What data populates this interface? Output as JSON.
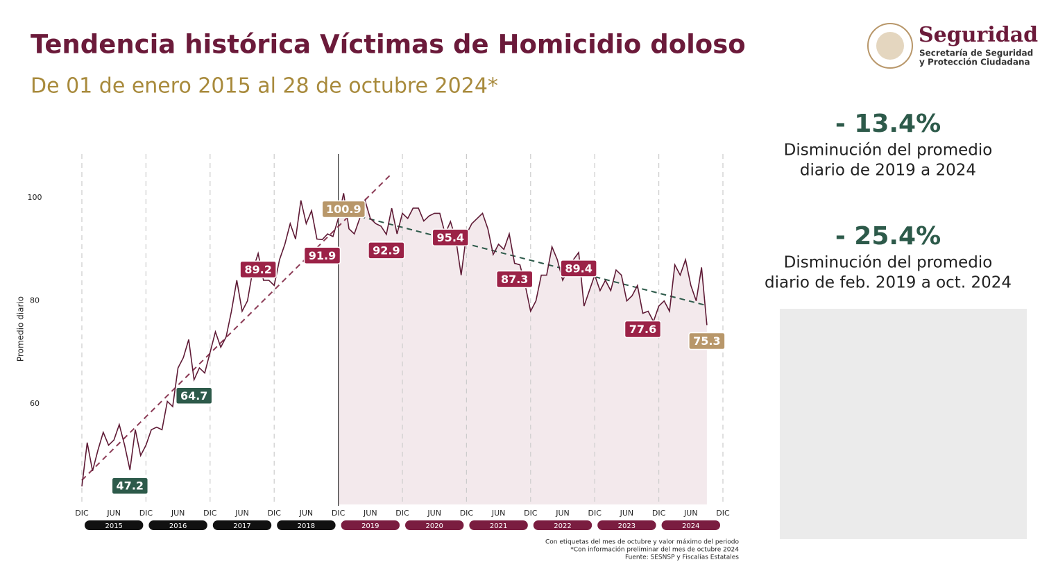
{
  "header": {
    "title": "Tendencia histórica Víctimas de Homicidio doloso",
    "subtitle": "De 01 de enero 2015 al 28 de octubre 2024*"
  },
  "logo": {
    "name": "Seguridad",
    "line1": "Secretaría de Seguridad",
    "line2": "y Protección Ciudadana"
  },
  "stats": [
    {
      "value": "- 13.4%",
      "line1": "Disminución del promedio",
      "line2": "diario de 2019 a 2024"
    },
    {
      "value": "- 25.4%",
      "line1": "Disminución del promedio",
      "line2": "diario de feb. 2019 a oct. 2024"
    }
  ],
  "notes": [
    "Con etiquetas del mes de octubre y valor máximo del periodo",
    "*Con información preliminar del mes de octubre 2024",
    "Fuente: SESNSP y Fiscalías Estatales"
  ],
  "chart_data": {
    "type": "line",
    "ylabel": "Promedio diario",
    "color": "#5e1a35",
    "values": [
      44,
      52.5,
      47,
      51,
      54.5,
      52,
      53,
      56,
      52,
      47.2,
      55,
      50,
      52,
      55,
      55.5,
      55,
      60.5,
      59.5,
      67,
      69,
      72.5,
      64.7,
      67,
      66,
      70,
      74,
      71,
      73,
      78,
      84,
      78,
      80,
      86,
      89.2,
      84,
      84,
      83,
      88,
      91,
      95,
      92,
      99.5,
      95,
      97.5,
      92,
      91.9,
      93,
      92.5,
      96,
      100.9,
      94,
      93,
      96,
      99.5,
      96,
      95,
      94.5,
      92.9,
      98,
      93,
      97,
      96,
      98,
      98,
      95.5,
      96.5,
      97,
      97,
      93,
      95.4,
      92,
      85,
      93,
      95,
      96,
      97,
      94,
      89,
      91,
      90,
      93,
      87.3,
      87,
      83,
      78,
      80,
      85,
      85,
      90.5,
      88,
      84,
      86,
      88,
      89.4,
      79,
      82,
      85,
      82,
      84,
      82,
      86,
      85,
      80,
      81,
      83,
      77.6,
      78,
      76,
      79,
      80,
      78,
      87,
      85,
      88,
      83,
      80,
      86.5,
      75.3
    ],
    "value_labels": [
      null,
      null,
      null,
      null,
      null,
      null,
      null,
      null,
      null,
      "47.2",
      null,
      null,
      null,
      null,
      null,
      null,
      null,
      null,
      null,
      null,
      null,
      "64.7",
      null,
      null,
      null,
      null,
      null,
      null,
      null,
      null,
      null,
      null,
      null,
      "89.2",
      null,
      null,
      null,
      null,
      null,
      null,
      null,
      null,
      null,
      null,
      null,
      "91.9",
      null,
      null,
      null,
      "100.9",
      null,
      null,
      null,
      null,
      null,
      null,
      null,
      "92.9",
      null,
      null,
      null,
      null,
      null,
      null,
      null,
      null,
      null,
      null,
      null,
      "95.4",
      null,
      null,
      null,
      null,
      null,
      null,
      null,
      null,
      null,
      null,
      null,
      "87.3",
      null,
      null,
      null,
      null,
      null,
      null,
      null,
      null,
      null,
      null,
      null,
      "89.4",
      null,
      null,
      null,
      null,
      null,
      null,
      null,
      null,
      null,
      null,
      null,
      "77.6",
      null,
      null,
      null,
      null,
      null,
      null,
      null,
      null,
      null,
      null,
      null,
      "75.3"
    ],
    "label_colors": [
      null,
      null,
      null,
      null,
      null,
      null,
      null,
      null,
      null,
      "#2d5a4a",
      null,
      null,
      null,
      null,
      null,
      null,
      null,
      null,
      null,
      null,
      null,
      "#2d5a4a",
      null,
      null,
      null,
      null,
      null,
      null,
      null,
      null,
      null,
      null,
      null,
      "#9b2247",
      null,
      null,
      null,
      null,
      null,
      null,
      null,
      null,
      null,
      null,
      null,
      "#9b2247",
      null,
      null,
      null,
      "#b8976a",
      null,
      null,
      null,
      null,
      null,
      null,
      null,
      "#9b2247",
      null,
      null,
      null,
      null,
      null,
      null,
      null,
      null,
      null,
      null,
      null,
      "#9b2247",
      null,
      null,
      null,
      null,
      null,
      null,
      null,
      null,
      null,
      null,
      null,
      "#9b2247",
      null,
      null,
      null,
      null,
      null,
      null,
      null,
      null,
      null,
      null,
      null,
      "#9b2247",
      null,
      null,
      null,
      null,
      null,
      null,
      null,
      null,
      null,
      null,
      null,
      "#9b2247",
      null,
      null,
      null,
      null,
      null,
      null,
      null,
      null,
      null,
      null,
      null,
      "#b8976a"
    ],
    "trend_lines": [
      {
        "color": "#8b3a55",
        "x": [
          0,
          58
        ],
        "values": [
          45.2,
          104.7
        ]
      },
      {
        "color": "#2d5a4a",
        "x": [
          52,
          117
        ],
        "values": [
          96.4,
          79.1
        ]
      }
    ],
    "ylim": [
      40.5,
      108.5
    ],
    "yticks": [
      60,
      80,
      100
    ],
    "xlim": [
      0,
      120
    ],
    "xticks": [
      {
        "value": 0,
        "label": "DIC"
      },
      {
        "value": 6,
        "label": "JUN"
      },
      {
        "value": 12,
        "label": "DIC"
      },
      {
        "value": 18,
        "label": "JUN"
      },
      {
        "value": 24,
        "label": "DIC"
      },
      {
        "value": 30,
        "label": "JUN"
      },
      {
        "value": 36,
        "label": "DIC"
      },
      {
        "value": 42,
        "label": "JUN"
      },
      {
        "value": 48,
        "label": "DIC"
      },
      {
        "value": 54,
        "label": "JUN"
      },
      {
        "value": 60,
        "label": "DIC"
      },
      {
        "value": 66,
        "label": "JUN"
      },
      {
        "value": 72,
        "label": "DIC"
      },
      {
        "value": 78,
        "label": "JUN"
      },
      {
        "value": 84,
        "label": "DIC"
      },
      {
        "value": 90,
        "label": "JUN"
      },
      {
        "value": 96,
        "label": "DIC"
      },
      {
        "value": 102,
        "label": "JUN"
      },
      {
        "value": 108,
        "label": "DIC"
      },
      {
        "value": 114,
        "label": "JUN"
      },
      {
        "value": 120,
        "label": "DIC"
      }
    ],
    "years": [
      {
        "label": "2015",
        "color": "#111111"
      },
      {
        "label": "2016",
        "color": "#111111"
      },
      {
        "label": "2017",
        "color": "#111111"
      },
      {
        "label": "2018",
        "color": "#111111"
      },
      {
        "label": "2019",
        "color": "#7a1d40"
      },
      {
        "label": "2020",
        "color": "#7a1d40"
      },
      {
        "label": "2021",
        "color": "#7a1d40"
      },
      {
        "label": "2022",
        "color": "#7a1d40"
      },
      {
        "label": "2023",
        "color": "#7a1d40"
      },
      {
        "label": "2024",
        "color": "#7a1d40"
      }
    ]
  }
}
